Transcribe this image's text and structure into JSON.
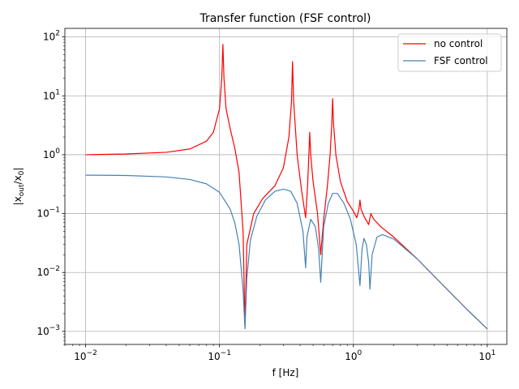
{
  "chart_data": {
    "type": "line",
    "title": "Transfer function (FSF control)",
    "xlabel": "f [Hz]",
    "ylabel_main": "|x",
    "ylabel_sub1": "out",
    "ylabel_mid": "/x",
    "ylabel_sub2": "0",
    "ylabel_end": "|",
    "xscale": "log",
    "yscale": "log",
    "xlim": [
      0.007,
      14
    ],
    "ylim": [
      0.0006,
      140
    ],
    "grid": true,
    "legend_position": "top-right",
    "x_ticks": [
      {
        "value": 0.01,
        "mant": "10",
        "exp": "−2"
      },
      {
        "value": 0.1,
        "mant": "10",
        "exp": "−1"
      },
      {
        "value": 1,
        "mant": "10",
        "exp": "0"
      },
      {
        "value": 10,
        "mant": "10",
        "exp": "1"
      }
    ],
    "y_ticks": [
      {
        "value": 0.001,
        "mant": "10",
        "exp": "−3"
      },
      {
        "value": 0.01,
        "mant": "10",
        "exp": "−2"
      },
      {
        "value": 0.1,
        "mant": "10",
        "exp": "−1"
      },
      {
        "value": 1,
        "mant": "10",
        "exp": "0"
      },
      {
        "value": 10,
        "mant": "10",
        "exp": "1"
      },
      {
        "value": 100,
        "mant": "10",
        "exp": "2"
      }
    ],
    "series": [
      {
        "name": "no control",
        "color": "#ff0000",
        "points": [
          [
            0.01,
            1.0
          ],
          [
            0.02,
            1.03
          ],
          [
            0.04,
            1.1
          ],
          [
            0.06,
            1.25
          ],
          [
            0.08,
            1.7
          ],
          [
            0.09,
            2.4
          ],
          [
            0.1,
            6.0
          ],
          [
            0.104,
            20
          ],
          [
            0.106,
            75
          ],
          [
            0.108,
            20
          ],
          [
            0.112,
            6.0
          ],
          [
            0.12,
            2.8
          ],
          [
            0.13,
            1.3
          ],
          [
            0.14,
            0.5
          ],
          [
            0.15,
            0.05
          ],
          [
            0.155,
            0.0012
          ],
          [
            0.16,
            0.03
          ],
          [
            0.18,
            0.1
          ],
          [
            0.21,
            0.18
          ],
          [
            0.26,
            0.3
          ],
          [
            0.3,
            0.6
          ],
          [
            0.33,
            2.0
          ],
          [
            0.345,
            8.0
          ],
          [
            0.351,
            38
          ],
          [
            0.358,
            8.0
          ],
          [
            0.38,
            1.0
          ],
          [
            0.41,
            0.25
          ],
          [
            0.44,
            0.085
          ],
          [
            0.455,
            0.3
          ],
          [
            0.465,
            1.0
          ],
          [
            0.472,
            2.4
          ],
          [
            0.48,
            1.0
          ],
          [
            0.5,
            0.35
          ],
          [
            0.54,
            0.1
          ],
          [
            0.57,
            0.02
          ],
          [
            0.6,
            0.08
          ],
          [
            0.64,
            0.3
          ],
          [
            0.67,
            1.0
          ],
          [
            0.69,
            3.5
          ],
          [
            0.7,
            9.0
          ],
          [
            0.71,
            3.5
          ],
          [
            0.74,
            1.0
          ],
          [
            0.8,
            0.35
          ],
          [
            0.9,
            0.16
          ],
          [
            1.0,
            0.11
          ],
          [
            1.06,
            0.085
          ],
          [
            1.1,
            0.12
          ],
          [
            1.12,
            0.17
          ],
          [
            1.14,
            0.12
          ],
          [
            1.2,
            0.09
          ],
          [
            1.3,
            0.065
          ],
          [
            1.35,
            0.1
          ],
          [
            1.42,
            0.08
          ],
          [
            1.6,
            0.06
          ],
          [
            2.0,
            0.04
          ],
          [
            3.0,
            0.017
          ],
          [
            5.0,
            0.0052
          ],
          [
            7.0,
            0.0024
          ],
          [
            10.0,
            0.0011
          ]
        ]
      },
      {
        "name": "FSF control",
        "color": "#4682b4",
        "points": [
          [
            0.01,
            0.45
          ],
          [
            0.02,
            0.445
          ],
          [
            0.04,
            0.42
          ],
          [
            0.06,
            0.38
          ],
          [
            0.08,
            0.32
          ],
          [
            0.1,
            0.23
          ],
          [
            0.12,
            0.12
          ],
          [
            0.13,
            0.07
          ],
          [
            0.14,
            0.03
          ],
          [
            0.15,
            0.005
          ],
          [
            0.155,
            0.0011
          ],
          [
            0.16,
            0.008
          ],
          [
            0.17,
            0.035
          ],
          [
            0.19,
            0.09
          ],
          [
            0.22,
            0.17
          ],
          [
            0.26,
            0.24
          ],
          [
            0.3,
            0.26
          ],
          [
            0.34,
            0.24
          ],
          [
            0.38,
            0.15
          ],
          [
            0.42,
            0.05
          ],
          [
            0.44,
            0.012
          ],
          [
            0.45,
            0.04
          ],
          [
            0.48,
            0.08
          ],
          [
            0.52,
            0.06
          ],
          [
            0.55,
            0.025
          ],
          [
            0.57,
            0.0068
          ],
          [
            0.6,
            0.06
          ],
          [
            0.65,
            0.15
          ],
          [
            0.7,
            0.22
          ],
          [
            0.76,
            0.22
          ],
          [
            0.85,
            0.15
          ],
          [
            0.95,
            0.08
          ],
          [
            1.05,
            0.03
          ],
          [
            1.12,
            0.006
          ],
          [
            1.16,
            0.025
          ],
          [
            1.2,
            0.038
          ],
          [
            1.25,
            0.03
          ],
          [
            1.3,
            0.015
          ],
          [
            1.33,
            0.0052
          ],
          [
            1.38,
            0.02
          ],
          [
            1.5,
            0.04
          ],
          [
            1.65,
            0.044
          ],
          [
            2.0,
            0.037
          ],
          [
            3.0,
            0.017
          ],
          [
            5.0,
            0.0052
          ],
          [
            7.0,
            0.0024
          ],
          [
            10.0,
            0.0011
          ]
        ]
      }
    ]
  }
}
